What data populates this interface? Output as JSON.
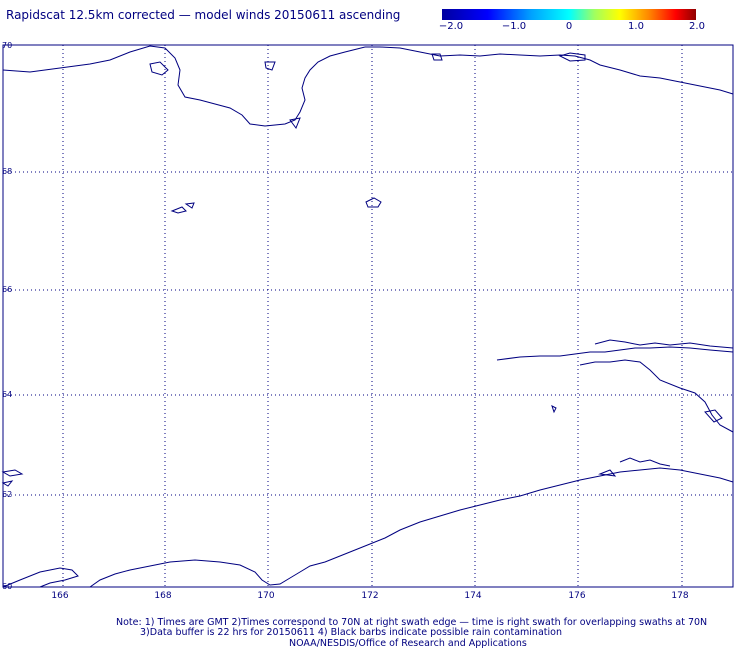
{
  "title": "Rapidscat 12.5km corrected — model winds 20150611 ascending",
  "colorbar": {
    "labels": [
      "−2.0",
      "−1.0",
      "0",
      "1.0",
      "2.0"
    ]
  },
  "latitudes": [
    "70",
    "68",
    "66",
    "64",
    "62",
    "60"
  ],
  "longitudes": [
    "166",
    "168",
    "170",
    "172",
    "174",
    "176",
    "178"
  ],
  "notes": {
    "line1": "Note: 1) Times are GMT 2)Times correspond to 70N at right swath edge — time is right swath for overlapping swaths at 70N",
    "line2": "3)Data buffer is 22 hrs for 20150611 4) Black barbs indicate possible rain contamination",
    "line3": "NOAA/NESDIS/Office of Research and Applications"
  },
  "colors": {
    "foreground": "#000080",
    "grid": "#000080"
  }
}
